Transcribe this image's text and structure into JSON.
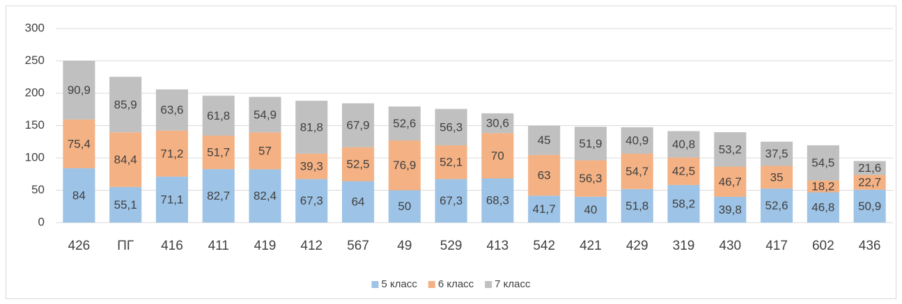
{
  "chart_data": {
    "type": "stacked-bar",
    "categories": [
      "426",
      "ПГ",
      "416",
      "411",
      "419",
      "412",
      "567",
      "49",
      "529",
      "413",
      "542",
      "421",
      "429",
      "319",
      "430",
      "417",
      "602",
      "436"
    ],
    "series": [
      {
        "name": "5 класс",
        "color": "#9dc3e6",
        "values": [
          84,
          55.1,
          71.1,
          82.7,
          82.4,
          67.3,
          64,
          50,
          67.3,
          68.3,
          41.7,
          40,
          51.8,
          58.2,
          39.8,
          52.6,
          46.8,
          50.9
        ],
        "value_labels": [
          "84",
          "55,1",
          "71,1",
          "82,7",
          "82,4",
          "67,3",
          "64",
          "50",
          "67,3",
          "68,3",
          "41,7",
          "40",
          "51,8",
          "58,2",
          "39,8",
          "52,6",
          "46,8",
          "50,9"
        ]
      },
      {
        "name": "6 класс",
        "color": "#f4b183",
        "values": [
          75.4,
          84.4,
          71.2,
          51.7,
          57,
          39.3,
          52.5,
          76.9,
          52.1,
          70,
          63,
          56.3,
          54.7,
          42.5,
          46.7,
          35,
          18.2,
          22.7
        ],
        "value_labels": [
          "75,4",
          "84,4",
          "71,2",
          "51,7",
          "57",
          "39,3",
          "52,5",
          "76,9",
          "52,1",
          "70",
          "63",
          "56,3",
          "54,7",
          "42,5",
          "46,7",
          "35",
          "18,2",
          "22,7"
        ]
      },
      {
        "name": "7 класс",
        "color": "#c0c0c0",
        "values": [
          90.9,
          85.9,
          63.6,
          61.8,
          54.9,
          81.8,
          67.9,
          52.6,
          56.3,
          30.6,
          45,
          51.9,
          40.9,
          40.8,
          53.2,
          37.5,
          54.5,
          21.6
        ],
        "value_labels": [
          "90,9",
          "85,9",
          "63,6",
          "61,8",
          "54,9",
          "81,8",
          "67,9",
          "52,6",
          "56,3",
          "30,6",
          "45",
          "51,9",
          "40,9",
          "40,8",
          "53,2",
          "37,5",
          "54,5",
          "21,6"
        ]
      }
    ],
    "ylim": [
      0,
      300
    ],
    "yticks": [
      0,
      50,
      100,
      150,
      200,
      250,
      300
    ],
    "grid": true,
    "legend": "bottom"
  }
}
